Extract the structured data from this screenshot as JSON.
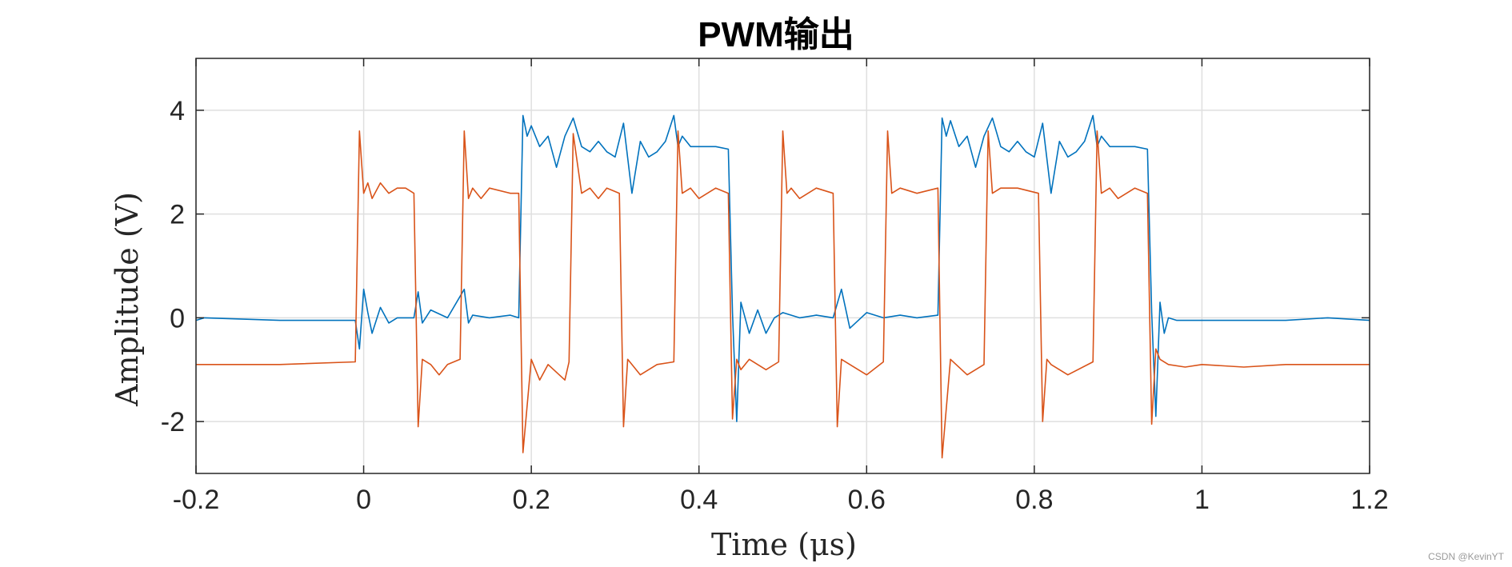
{
  "chart_data": {
    "type": "line",
    "title": "PWM输出",
    "xlabel": "Time (μs)",
    "ylabel": "Amplitude (V)",
    "xlim": [
      -0.2,
      1.2
    ],
    "ylim": [
      -3,
      5
    ],
    "xticks": [
      -0.2,
      0,
      0.2,
      0.4,
      0.6,
      0.8,
      1,
      1.2
    ],
    "xtick_labels": [
      "-0.2",
      "0",
      "0.2",
      "0.4",
      "0.6",
      "0.8",
      "1",
      "1.2"
    ],
    "yticks": [
      -2,
      0,
      2,
      4
    ],
    "ytick_labels": [
      "-2",
      "0",
      "2",
      "4"
    ],
    "grid": true,
    "legend": "none",
    "series": [
      {
        "color": "#0072BD",
        "x": [
          -0.2,
          -0.19,
          -0.1,
          -0.01,
          -0.005,
          0.0,
          0.005,
          0.01,
          0.02,
          0.03,
          0.04,
          0.06,
          0.065,
          0.07,
          0.08,
          0.1,
          0.12,
          0.125,
          0.13,
          0.15,
          0.175,
          0.185,
          0.19,
          0.195,
          0.2,
          0.21,
          0.22,
          0.23,
          0.24,
          0.25,
          0.26,
          0.27,
          0.28,
          0.29,
          0.3,
          0.31,
          0.32,
          0.33,
          0.34,
          0.35,
          0.36,
          0.37,
          0.375,
          0.38,
          0.39,
          0.4,
          0.42,
          0.435,
          0.44,
          0.445,
          0.45,
          0.46,
          0.47,
          0.48,
          0.49,
          0.5,
          0.52,
          0.54,
          0.56,
          0.57,
          0.58,
          0.6,
          0.62,
          0.64,
          0.66,
          0.685,
          0.69,
          0.695,
          0.7,
          0.71,
          0.72,
          0.73,
          0.74,
          0.75,
          0.76,
          0.77,
          0.78,
          0.79,
          0.8,
          0.81,
          0.82,
          0.83,
          0.84,
          0.85,
          0.86,
          0.87,
          0.875,
          0.88,
          0.89,
          0.9,
          0.92,
          0.935,
          0.94,
          0.945,
          0.95,
          0.955,
          0.96,
          0.97,
          0.98,
          1.0,
          1.05,
          1.1,
          1.15,
          1.2
        ],
        "values": [
          -0.05,
          0.0,
          -0.05,
          -0.05,
          -0.6,
          0.55,
          0.1,
          -0.3,
          0.2,
          -0.1,
          0.0,
          0.0,
          0.5,
          -0.1,
          0.15,
          0.0,
          0.55,
          -0.1,
          0.05,
          0.0,
          0.05,
          0.0,
          3.9,
          3.5,
          3.7,
          3.3,
          3.5,
          2.9,
          3.5,
          3.85,
          3.3,
          3.2,
          3.4,
          3.2,
          3.1,
          3.75,
          2.4,
          3.4,
          3.1,
          3.2,
          3.4,
          3.9,
          3.3,
          3.5,
          3.3,
          3.3,
          3.3,
          3.25,
          0.1,
          -2.0,
          0.3,
          -0.3,
          0.15,
          -0.3,
          0.0,
          0.1,
          0.0,
          0.05,
          0.0,
          0.55,
          -0.2,
          0.1,
          0.0,
          0.05,
          0.0,
          0.05,
          3.85,
          3.5,
          3.8,
          3.3,
          3.5,
          2.9,
          3.5,
          3.85,
          3.3,
          3.2,
          3.4,
          3.2,
          3.1,
          3.75,
          2.4,
          3.4,
          3.1,
          3.2,
          3.4,
          3.9,
          3.3,
          3.5,
          3.3,
          3.3,
          3.3,
          3.25,
          0.1,
          -1.9,
          0.3,
          -0.3,
          0.0,
          -0.05,
          -0.05,
          -0.05,
          -0.05,
          -0.05,
          0.0,
          -0.05
        ]
      },
      {
        "color": "#D95319",
        "x": [
          -0.2,
          -0.1,
          -0.01,
          -0.005,
          0.0,
          0.005,
          0.01,
          0.02,
          0.03,
          0.04,
          0.05,
          0.06,
          0.065,
          0.07,
          0.08,
          0.09,
          0.1,
          0.115,
          0.12,
          0.125,
          0.13,
          0.14,
          0.15,
          0.175,
          0.185,
          0.19,
          0.2,
          0.21,
          0.22,
          0.24,
          0.245,
          0.25,
          0.26,
          0.27,
          0.28,
          0.29,
          0.305,
          0.31,
          0.315,
          0.32,
          0.33,
          0.35,
          0.37,
          0.375,
          0.38,
          0.39,
          0.4,
          0.42,
          0.435,
          0.44,
          0.445,
          0.45,
          0.46,
          0.48,
          0.495,
          0.5,
          0.505,
          0.51,
          0.52,
          0.54,
          0.56,
          0.565,
          0.57,
          0.58,
          0.6,
          0.62,
          0.625,
          0.63,
          0.64,
          0.66,
          0.685,
          0.69,
          0.7,
          0.72,
          0.74,
          0.745,
          0.75,
          0.76,
          0.78,
          0.805,
          0.81,
          0.815,
          0.82,
          0.84,
          0.87,
          0.875,
          0.88,
          0.89,
          0.9,
          0.92,
          0.935,
          0.94,
          0.945,
          0.95,
          0.96,
          0.98,
          1.0,
          1.05,
          1.1,
          1.15,
          1.2
        ],
        "values": [
          -0.9,
          -0.9,
          -0.85,
          3.6,
          2.4,
          2.6,
          2.3,
          2.6,
          2.4,
          2.5,
          2.5,
          2.4,
          -2.1,
          -0.8,
          -0.9,
          -1.1,
          -0.9,
          -0.8,
          3.6,
          2.3,
          2.5,
          2.3,
          2.5,
          2.4,
          2.4,
          -2.6,
          -0.8,
          -1.2,
          -0.9,
          -1.2,
          -0.85,
          3.55,
          2.4,
          2.5,
          2.3,
          2.5,
          2.4,
          -2.1,
          -0.8,
          -0.9,
          -1.1,
          -0.9,
          -0.85,
          3.6,
          2.4,
          2.5,
          2.3,
          2.5,
          2.4,
          -1.95,
          -0.8,
          -1.0,
          -0.8,
          -1.0,
          -0.85,
          3.6,
          2.4,
          2.5,
          2.3,
          2.5,
          2.4,
          -2.1,
          -0.8,
          -0.9,
          -1.1,
          -0.85,
          3.6,
          2.4,
          2.5,
          2.4,
          2.5,
          -2.7,
          -0.8,
          -1.1,
          -0.9,
          3.6,
          2.4,
          2.5,
          2.5,
          2.4,
          -2.0,
          -0.8,
          -0.9,
          -1.1,
          -0.85,
          3.6,
          2.4,
          2.5,
          2.3,
          2.5,
          2.4,
          -2.05,
          -0.6,
          -0.8,
          -0.9,
          -0.95,
          -0.9,
          -0.95,
          -0.9,
          -0.9,
          -0.9
        ]
      }
    ]
  },
  "watermark": "CSDN @KevinYT"
}
